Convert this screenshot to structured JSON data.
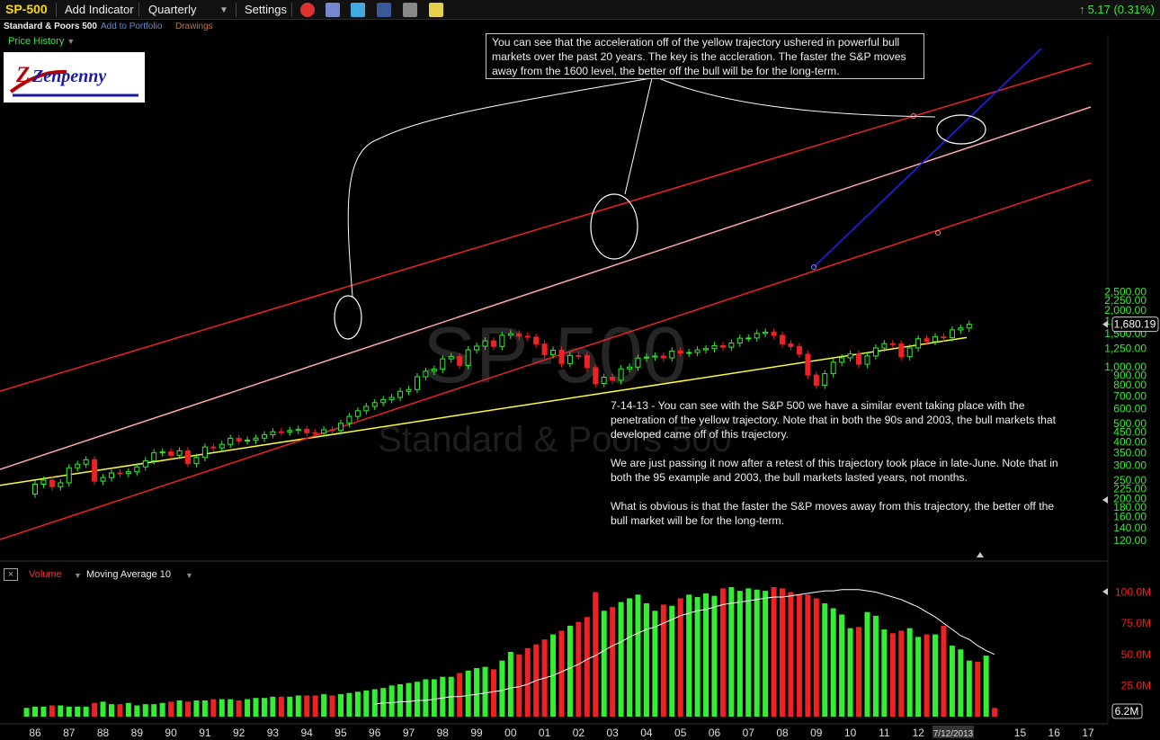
{
  "toolbar": {
    "symbol": "SP-500",
    "add_indicator": "Add Indicator",
    "interval": "Quarterly",
    "settings": "Settings",
    "change": "5.17 (0.31%)"
  },
  "subbar": {
    "name": "Standard & Poors 500",
    "add_to_portfolio": "Add to Portfolio",
    "drawings": "Drawings"
  },
  "price_history_label": "Price History",
  "logo": {
    "text": "Zenpenny"
  },
  "watermark": {
    "symbol": "SP-500",
    "name": "Standard & Poors 500"
  },
  "annotations": {
    "top_note": "You can see that the acceleration off of the yellow trajectory ushered in powerful bull markets over the past 20 years. The key is the accleration. The faster the S&P moves away from the 1600 level, the better off the bull will be for the long-term.",
    "main_note_p1": "7-14-13 - You can see with the S&P 500 we have a similar event taking place with the penetration of the yellow trajectory. Note that in both the 90s and 2003, the bull markets that developed came off of this trajectory.",
    "main_note_p2": "We are just passing it now after a retest of this trajectory took place in late-June. Note that in both the 95 example and 2003, the bull markets lasted years, not months.",
    "main_note_p3": "What is obvious is that the faster the S&P moves away from this trajectory, the better off the bull market will be for the long-term."
  },
  "volume_panel": {
    "label": "Volume",
    "indicator": "Moving Average 10",
    "last_value": "6.2M",
    "y_ticks": [
      "100.0M",
      "75.0M",
      "50.0M",
      "25.0M"
    ]
  },
  "colors": {
    "up": "#33ee33",
    "down": "#ee2222",
    "yellow_trend": "#ffff33",
    "red_channel": "#ee2222",
    "pink_channel": "#ffaaaa",
    "blue_trend": "#2222ff",
    "price_axis_text": "#33ee33"
  },
  "chart_data": {
    "type": "candlestick",
    "scale": "log",
    "interval": "quarterly",
    "last_price": "1,680.19",
    "last_date": "7/12/2013",
    "x_ticks": [
      "86",
      "87",
      "88",
      "89",
      "90",
      "91",
      "92",
      "93",
      "94",
      "95",
      "96",
      "97",
      "98",
      "99",
      "00",
      "01",
      "02",
      "03",
      "04",
      "05",
      "06",
      "07",
      "08",
      "09",
      "10",
      "11",
      "12",
      "7/12/2013",
      "15",
      "16",
      "17"
    ],
    "y_ticks": [
      120,
      140,
      160,
      180,
      200,
      225,
      250,
      300,
      350,
      400,
      450,
      500,
      600,
      700,
      800,
      900,
      1000,
      1250,
      1500,
      1750,
      2000,
      2250,
      2500
    ],
    "y_tick_labels": [
      "120.00",
      "140.00",
      "160.00",
      "180.00",
      "200.00",
      "225.00",
      "250.00",
      "300.00",
      "350.00",
      "400.00",
      "450.00",
      "500.00",
      "600.00",
      "700.00",
      "800.00",
      "900.00",
      "1,000.00",
      "1,250.00",
      "1,500.00",
      "1,750.00",
      "2,000.00",
      "2,250.00",
      "2,500.00"
    ],
    "close_series": [
      {
        "x": 1985.75,
        "value": 211
      },
      {
        "x": 1986.0,
        "value": 238
      },
      {
        "x": 1986.25,
        "value": 250
      },
      {
        "x": 1986.5,
        "value": 231
      },
      {
        "x": 1986.75,
        "value": 242
      },
      {
        "x": 1987.0,
        "value": 291
      },
      {
        "x": 1987.25,
        "value": 304
      },
      {
        "x": 1987.5,
        "value": 321
      },
      {
        "x": 1987.75,
        "value": 247
      },
      {
        "x": 1988.0,
        "value": 258
      },
      {
        "x": 1988.25,
        "value": 273
      },
      {
        "x": 1988.5,
        "value": 271
      },
      {
        "x": 1988.75,
        "value": 277
      },
      {
        "x": 1989.0,
        "value": 294
      },
      {
        "x": 1989.25,
        "value": 317
      },
      {
        "x": 1989.5,
        "value": 349
      },
      {
        "x": 1989.75,
        "value": 353
      },
      {
        "x": 1990.0,
        "value": 339
      },
      {
        "x": 1990.25,
        "value": 358
      },
      {
        "x": 1990.5,
        "value": 306
      },
      {
        "x": 1990.75,
        "value": 330
      },
      {
        "x": 1991.0,
        "value": 375
      },
      {
        "x": 1991.25,
        "value": 371
      },
      {
        "x": 1991.5,
        "value": 387
      },
      {
        "x": 1991.75,
        "value": 417
      },
      {
        "x": 1992.0,
        "value": 404
      },
      {
        "x": 1992.25,
        "value": 408
      },
      {
        "x": 1992.5,
        "value": 418
      },
      {
        "x": 1992.75,
        "value": 436
      },
      {
        "x": 1993.0,
        "value": 452
      },
      {
        "x": 1993.25,
        "value": 451
      },
      {
        "x": 1993.5,
        "value": 459
      },
      {
        "x": 1993.75,
        "value": 466
      },
      {
        "x": 1994.0,
        "value": 446
      },
      {
        "x": 1994.25,
        "value": 444
      },
      {
        "x": 1994.5,
        "value": 463
      },
      {
        "x": 1994.75,
        "value": 459
      },
      {
        "x": 1995.0,
        "value": 501
      },
      {
        "x": 1995.25,
        "value": 545
      },
      {
        "x": 1995.5,
        "value": 584
      },
      {
        "x": 1995.75,
        "value": 616
      },
      {
        "x": 1996.0,
        "value": 645
      },
      {
        "x": 1996.25,
        "value": 670
      },
      {
        "x": 1996.5,
        "value": 687
      },
      {
        "x": 1996.75,
        "value": 740
      },
      {
        "x": 1997.0,
        "value": 757
      },
      {
        "x": 1997.25,
        "value": 885
      },
      {
        "x": 1997.5,
        "value": 947
      },
      {
        "x": 1997.75,
        "value": 970
      },
      {
        "x": 1998.0,
        "value": 1101
      },
      {
        "x": 1998.25,
        "value": 1133
      },
      {
        "x": 1998.5,
        "value": 1017
      },
      {
        "x": 1998.75,
        "value": 1229
      },
      {
        "x": 1999.0,
        "value": 1286
      },
      {
        "x": 1999.25,
        "value": 1372
      },
      {
        "x": 1999.5,
        "value": 1282
      },
      {
        "x": 1999.75,
        "value": 1469
      },
      {
        "x": 2000.0,
        "value": 1498
      },
      {
        "x": 2000.25,
        "value": 1454
      },
      {
        "x": 2000.5,
        "value": 1436
      },
      {
        "x": 2000.75,
        "value": 1320
      },
      {
        "x": 2001.0,
        "value": 1160
      },
      {
        "x": 2001.25,
        "value": 1224
      },
      {
        "x": 2001.5,
        "value": 1040
      },
      {
        "x": 2001.75,
        "value": 1148
      },
      {
        "x": 2002.0,
        "value": 1147
      },
      {
        "x": 2002.25,
        "value": 990
      },
      {
        "x": 2002.5,
        "value": 815
      },
      {
        "x": 2002.75,
        "value": 880
      },
      {
        "x": 2003.0,
        "value": 848
      },
      {
        "x": 2003.25,
        "value": 975
      },
      {
        "x": 2003.5,
        "value": 996
      },
      {
        "x": 2003.75,
        "value": 1112
      },
      {
        "x": 2004.0,
        "value": 1126
      },
      {
        "x": 2004.25,
        "value": 1141
      },
      {
        "x": 2004.5,
        "value": 1115
      },
      {
        "x": 2004.75,
        "value": 1212
      },
      {
        "x": 2005.0,
        "value": 1181
      },
      {
        "x": 2005.25,
        "value": 1191
      },
      {
        "x": 2005.5,
        "value": 1229
      },
      {
        "x": 2005.75,
        "value": 1248
      },
      {
        "x": 2006.0,
        "value": 1295
      },
      {
        "x": 2006.25,
        "value": 1270
      },
      {
        "x": 2006.5,
        "value": 1336
      },
      {
        "x": 2006.75,
        "value": 1418
      },
      {
        "x": 2007.0,
        "value": 1421
      },
      {
        "x": 2007.25,
        "value": 1503
      },
      {
        "x": 2007.5,
        "value": 1527
      },
      {
        "x": 2007.75,
        "value": 1468
      },
      {
        "x": 2008.0,
        "value": 1323
      },
      {
        "x": 2008.25,
        "value": 1280
      },
      {
        "x": 2008.5,
        "value": 1166
      },
      {
        "x": 2008.75,
        "value": 903
      },
      {
        "x": 2009.0,
        "value": 798
      },
      {
        "x": 2009.25,
        "value": 919
      },
      {
        "x": 2009.5,
        "value": 1057
      },
      {
        "x": 2009.75,
        "value": 1115
      },
      {
        "x": 2010.0,
        "value": 1169
      },
      {
        "x": 2010.25,
        "value": 1031
      },
      {
        "x": 2010.5,
        "value": 1141
      },
      {
        "x": 2010.75,
        "value": 1258
      },
      {
        "x": 2011.0,
        "value": 1326
      },
      {
        "x": 2011.25,
        "value": 1321
      },
      {
        "x": 2011.5,
        "value": 1131
      },
      {
        "x": 2011.75,
        "value": 1258
      },
      {
        "x": 2012.0,
        "value": 1408
      },
      {
        "x": 2012.25,
        "value": 1362
      },
      {
        "x": 2012.5,
        "value": 1441
      },
      {
        "x": 2012.75,
        "value": 1426
      },
      {
        "x": 2013.0,
        "value": 1569
      },
      {
        "x": 2013.25,
        "value": 1606
      },
      {
        "x": 2013.5,
        "value": 1680
      }
    ],
    "volume": {
      "x_start": 1985.75,
      "step": 0.25,
      "values": [
        7,
        8,
        8,
        9,
        9,
        8,
        8,
        8,
        11,
        12,
        10,
        10,
        11,
        9,
        10,
        10,
        11,
        12,
        13,
        12,
        13,
        13,
        14,
        14,
        14,
        13,
        14,
        15,
        15,
        16,
        16,
        16,
        17,
        17,
        17,
        18,
        17,
        18,
        19,
        20,
        21,
        22,
        23,
        25,
        26,
        27,
        28,
        30,
        30,
        32,
        32,
        35,
        37,
        39,
        40,
        38,
        45,
        52,
        50,
        55,
        58,
        62,
        66,
        69,
        73,
        76,
        80,
        100,
        85,
        88,
        92,
        95,
        98,
        91,
        85,
        90,
        89,
        95,
        98,
        96,
        99,
        97,
        103,
        104,
        101,
        103,
        102,
        101,
        104,
        103,
        100,
        98,
        98,
        95,
        91,
        87,
        82,
        71,
        72,
        84,
        81,
        70,
        67,
        69,
        71,
        64,
        66,
        66,
        73,
        57,
        54,
        45,
        44,
        49,
        7
      ],
      "ma_values": [
        10,
        11,
        11,
        12,
        12,
        13,
        13,
        14,
        15,
        16,
        16,
        17,
        18,
        19,
        20,
        21,
        23,
        24,
        26,
        29,
        31,
        33,
        36,
        39,
        42,
        46,
        49,
        53,
        57,
        60,
        64,
        67,
        70,
        72,
        75,
        78,
        81,
        83,
        85,
        86,
        88,
        90,
        91,
        92,
        93,
        94,
        95,
        96,
        96,
        97,
        98,
        99,
        100,
        101,
        101,
        102,
        102,
        102,
        101,
        100,
        98,
        96,
        94,
        91,
        88,
        84,
        80,
        75,
        70,
        65,
        62,
        57,
        53,
        50
      ]
    },
    "trend_lines": [
      {
        "name": "yellow trajectory"
      },
      {
        "name": "red upper channel"
      },
      {
        "name": "pink middle channel"
      },
      {
        "name": "red lower channel"
      },
      {
        "name": "blue 2009 trend"
      }
    ]
  }
}
